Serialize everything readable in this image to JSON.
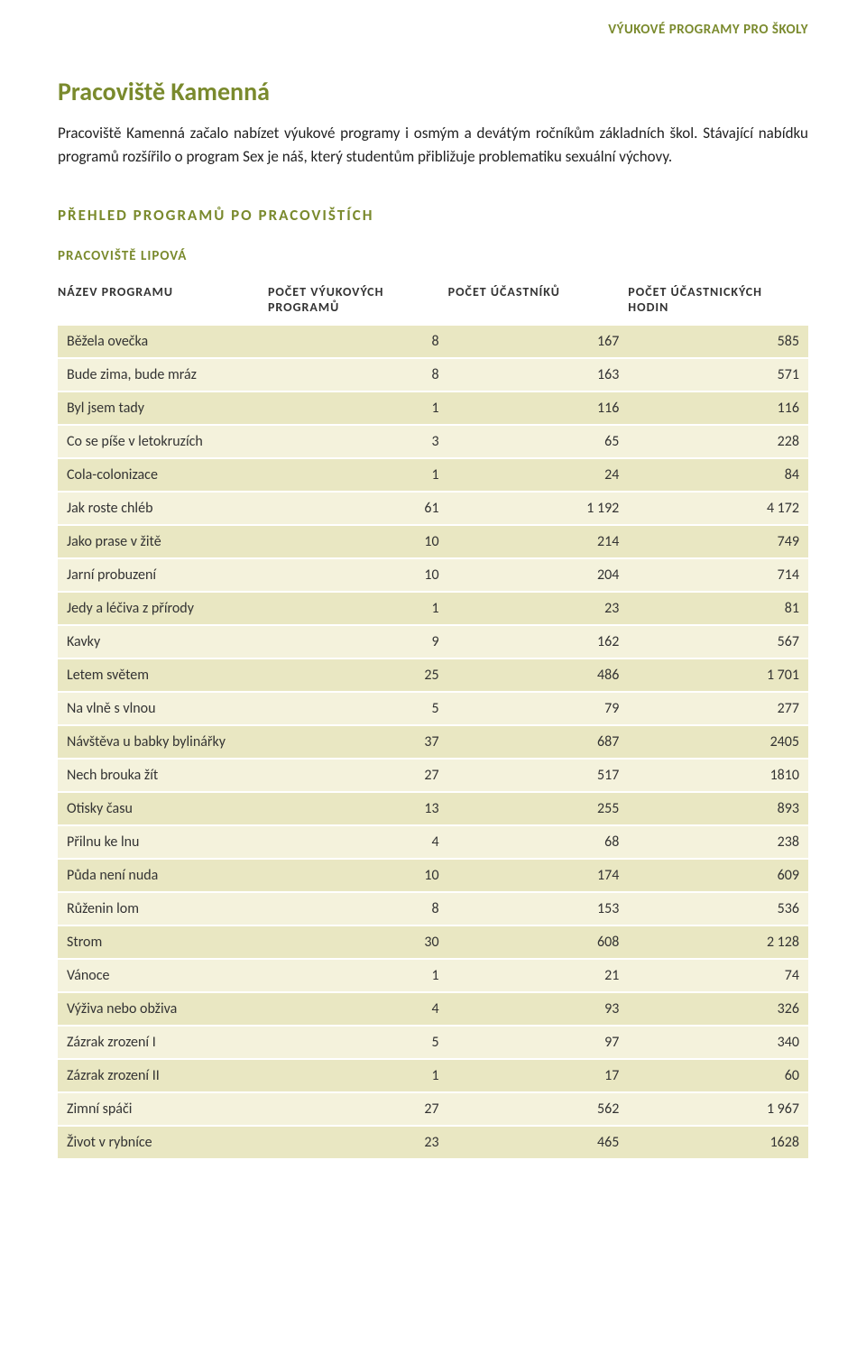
{
  "header": {
    "running_title": "VÝUKOVÉ PROGRAMY PRO ŠKOLY"
  },
  "section": {
    "title": "Pracoviště Kamenná",
    "intro": "Pracoviště Kamenná začalo nabízet výukové programy i osmým a devátým ročníkům základních škol. Stávající nabídku programů rozšířilo o program Sex je náš, který studentům přibližuje problematiku sexuální výchovy."
  },
  "overview": {
    "heading": "PŘEHLED PROGRAMŮ PO PRACOVIŠTÍCH",
    "subheading": "PRACOVIŠTĚ LIPOVÁ",
    "subheading_color": "#7a8a2d"
  },
  "table": {
    "type": "table",
    "row_colors": {
      "odd": "#e9e7c2",
      "even": "#f4f2dc"
    },
    "header_text_color": "#333333",
    "header_fontsize": 14,
    "cell_fontsize": 16,
    "columns": [
      {
        "key": "name",
        "label": "NÁZEV PROGRAMU",
        "align": "left"
      },
      {
        "key": "prog",
        "label": "POČET VÝUKOVÝCH PROGRAMŮ",
        "align": "right"
      },
      {
        "key": "part",
        "label": "POČET ÚČASTNÍKŮ",
        "align": "right"
      },
      {
        "key": "hrs",
        "label": "POČET ÚČASTNICKÝCH HODIN",
        "align": "right"
      }
    ],
    "rows": [
      {
        "name": "Běžela ovečka",
        "prog": "8",
        "part": "167",
        "hrs": "585"
      },
      {
        "name": "Bude zima, bude mráz",
        "prog": "8",
        "part": "163",
        "hrs": "571"
      },
      {
        "name": "Byl jsem tady",
        "prog": "1",
        "part": "116",
        "hrs": "116"
      },
      {
        "name": "Co se píše v letokruzích",
        "prog": "3",
        "part": "65",
        "hrs": "228"
      },
      {
        "name": "Cola-colonizace",
        "prog": "1",
        "part": "24",
        "hrs": "84"
      },
      {
        "name": "Jak roste chléb",
        "prog": "61",
        "part": "1 192",
        "hrs": "4 172"
      },
      {
        "name": "Jako prase v žitě",
        "prog": "10",
        "part": "214",
        "hrs": "749"
      },
      {
        "name": "Jarní probuzení",
        "prog": "10",
        "part": "204",
        "hrs": "714"
      },
      {
        "name": "Jedy a léčiva z přírody",
        "prog": "1",
        "part": "23",
        "hrs": "81"
      },
      {
        "name": "Kavky",
        "prog": "9",
        "part": "162",
        "hrs": "567"
      },
      {
        "name": "Letem světem",
        "prog": "25",
        "part": "486",
        "hrs": "1 701"
      },
      {
        "name": "Na vlně s vlnou",
        "prog": "5",
        "part": "79",
        "hrs": "277"
      },
      {
        "name": "Návštěva u babky bylinářky",
        "prog": "37",
        "part": "687",
        "hrs": "2405"
      },
      {
        "name": "Nech brouka žít",
        "prog": "27",
        "part": "517",
        "hrs": "1810"
      },
      {
        "name": "Otisky času",
        "prog": "13",
        "part": "255",
        "hrs": "893"
      },
      {
        "name": "Přilnu ke lnu",
        "prog": "4",
        "part": "68",
        "hrs": "238"
      },
      {
        "name": "Půda není nuda",
        "prog": "10",
        "part": "174",
        "hrs": "609"
      },
      {
        "name": "Růženin lom",
        "prog": "8",
        "part": "153",
        "hrs": "536"
      },
      {
        "name": "Strom",
        "prog": "30",
        "part": "608",
        "hrs": "2 128"
      },
      {
        "name": "Vánoce",
        "prog": "1",
        "part": "21",
        "hrs": "74"
      },
      {
        "name": "Výživa nebo obživa",
        "prog": "4",
        "part": "93",
        "hrs": "326"
      },
      {
        "name": "Zázrak zrození I",
        "prog": "5",
        "part": "97",
        "hrs": "340"
      },
      {
        "name": "Zázrak zrození II",
        "prog": "1",
        "part": "17",
        "hrs": "60"
      },
      {
        "name": "Zimní spáči",
        "prog": "27",
        "part": "562",
        "hrs": "1 967"
      },
      {
        "name": "Život v rybníce",
        "prog": "23",
        "part": "465",
        "hrs": "1628"
      }
    ]
  }
}
